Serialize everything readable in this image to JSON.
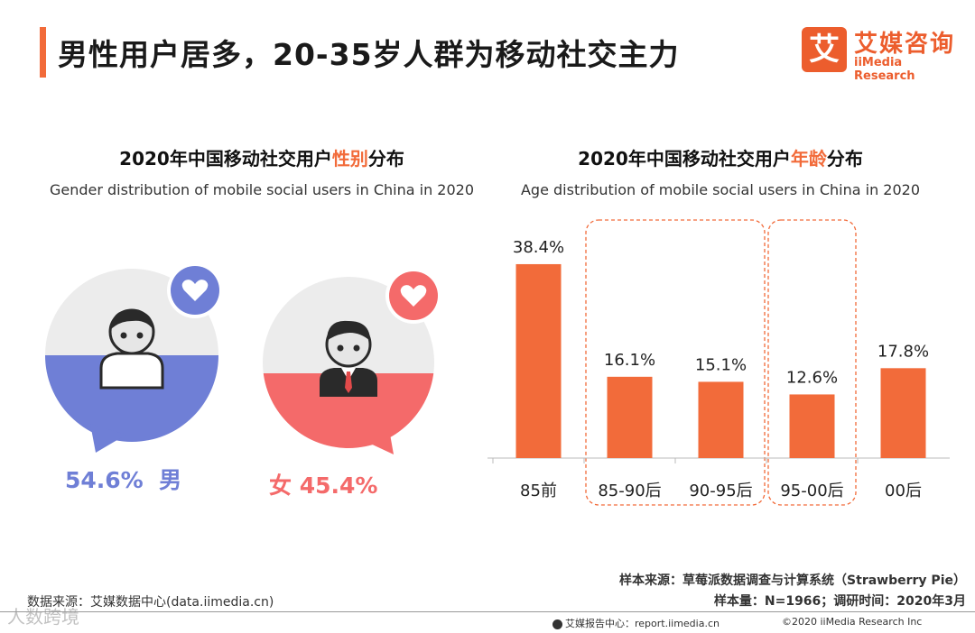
{
  "title": "男性用户居多，20-35岁人群为移动社交主力",
  "logo": {
    "mark": "艾",
    "cn": "艾媒咨询",
    "en": "iiMedia Research"
  },
  "gender_panel": {
    "title_prefix": "2020年中国移动社交用户",
    "title_highlight": "性别",
    "title_suffix": "分布",
    "subtitle_en": "Gender distribution of mobile social users in China in 2020",
    "male": {
      "percent": "54.6%",
      "label": "男",
      "value": 54.6,
      "color": "#6f7fd6"
    },
    "female": {
      "percent": "45.4%",
      "label": "女",
      "value": 45.4,
      "color": "#f46a6a"
    }
  },
  "age_panel": {
    "title_prefix": "2020年中国移动社交用户",
    "title_highlight": "年龄",
    "title_suffix": "分布",
    "subtitle_en": "Age distribution of mobile social users in China in 2020"
  },
  "chart_data": {
    "type": "bar",
    "title": "2020年中国移动社交用户年龄分布",
    "subtitle": "Age distribution of mobile social users in China in 2020",
    "categories": [
      "85前",
      "85-90后",
      "90-95后",
      "95-00后",
      "00后"
    ],
    "values": [
      38.4,
      16.1,
      15.1,
      12.6,
      17.8
    ],
    "labels": [
      "38.4%",
      "16.1%",
      "15.1%",
      "12.6%",
      "17.8%"
    ],
    "ylim": [
      0,
      40
    ],
    "bar_color": "#f26b3a",
    "highlight_groups": [
      [
        "85-90后",
        "90-95后"
      ],
      [
        "95-00后"
      ]
    ]
  },
  "footer": {
    "sample_source": "样本来源：草莓派数据调查与计算系统（Strawberry Pie）",
    "sample_size": "样本量：N=1966；调研时间：2020年3月",
    "data_source": "数据来源：艾媒数据中心(data.iimedia.cn)",
    "report_center": "艾媒报告中心：report.iimedia.cn",
    "copyright": "©2020  iiMedia Research  Inc",
    "watermark": "人数跨境"
  }
}
